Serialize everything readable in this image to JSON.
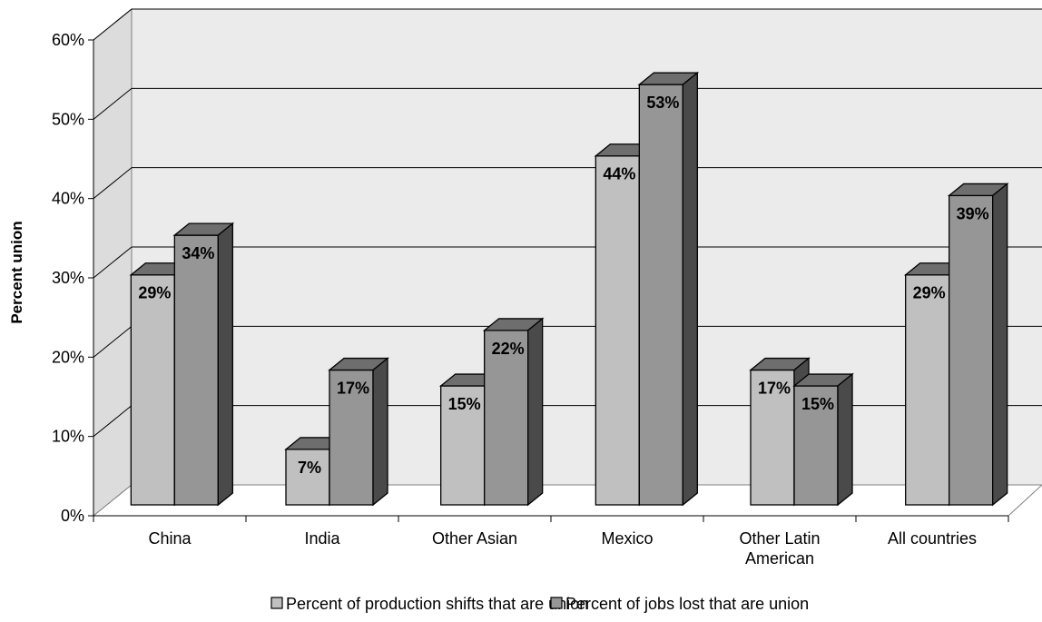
{
  "chart_data": {
    "type": "bar",
    "style": "3d-clustered-column",
    "categories": [
      "China",
      "India",
      "Other Asian",
      "Mexico",
      "Other Latin American",
      "All countries"
    ],
    "series": [
      {
        "name": "Percent of production shifts that are union",
        "values": [
          29,
          7,
          15,
          44,
          17,
          29
        ],
        "labels": [
          "29%",
          "7%",
          "15%",
          "44%",
          "17%",
          "29%"
        ],
        "color": "#c0c0c0"
      },
      {
        "name": "Percent of jobs lost that are union",
        "values": [
          34,
          17,
          22,
          53,
          15,
          39
        ],
        "labels": [
          "34%",
          "17%",
          "22%",
          "53%",
          "15%",
          "39%"
        ],
        "color": "#969696"
      }
    ],
    "xlabel": "",
    "ylabel": "Percent union",
    "ylim": [
      0,
      60
    ],
    "yticks": [
      "0%",
      "10%",
      "20%",
      "30%",
      "40%",
      "50%",
      "60%"
    ],
    "grid": true,
    "legend_position": "bottom"
  }
}
